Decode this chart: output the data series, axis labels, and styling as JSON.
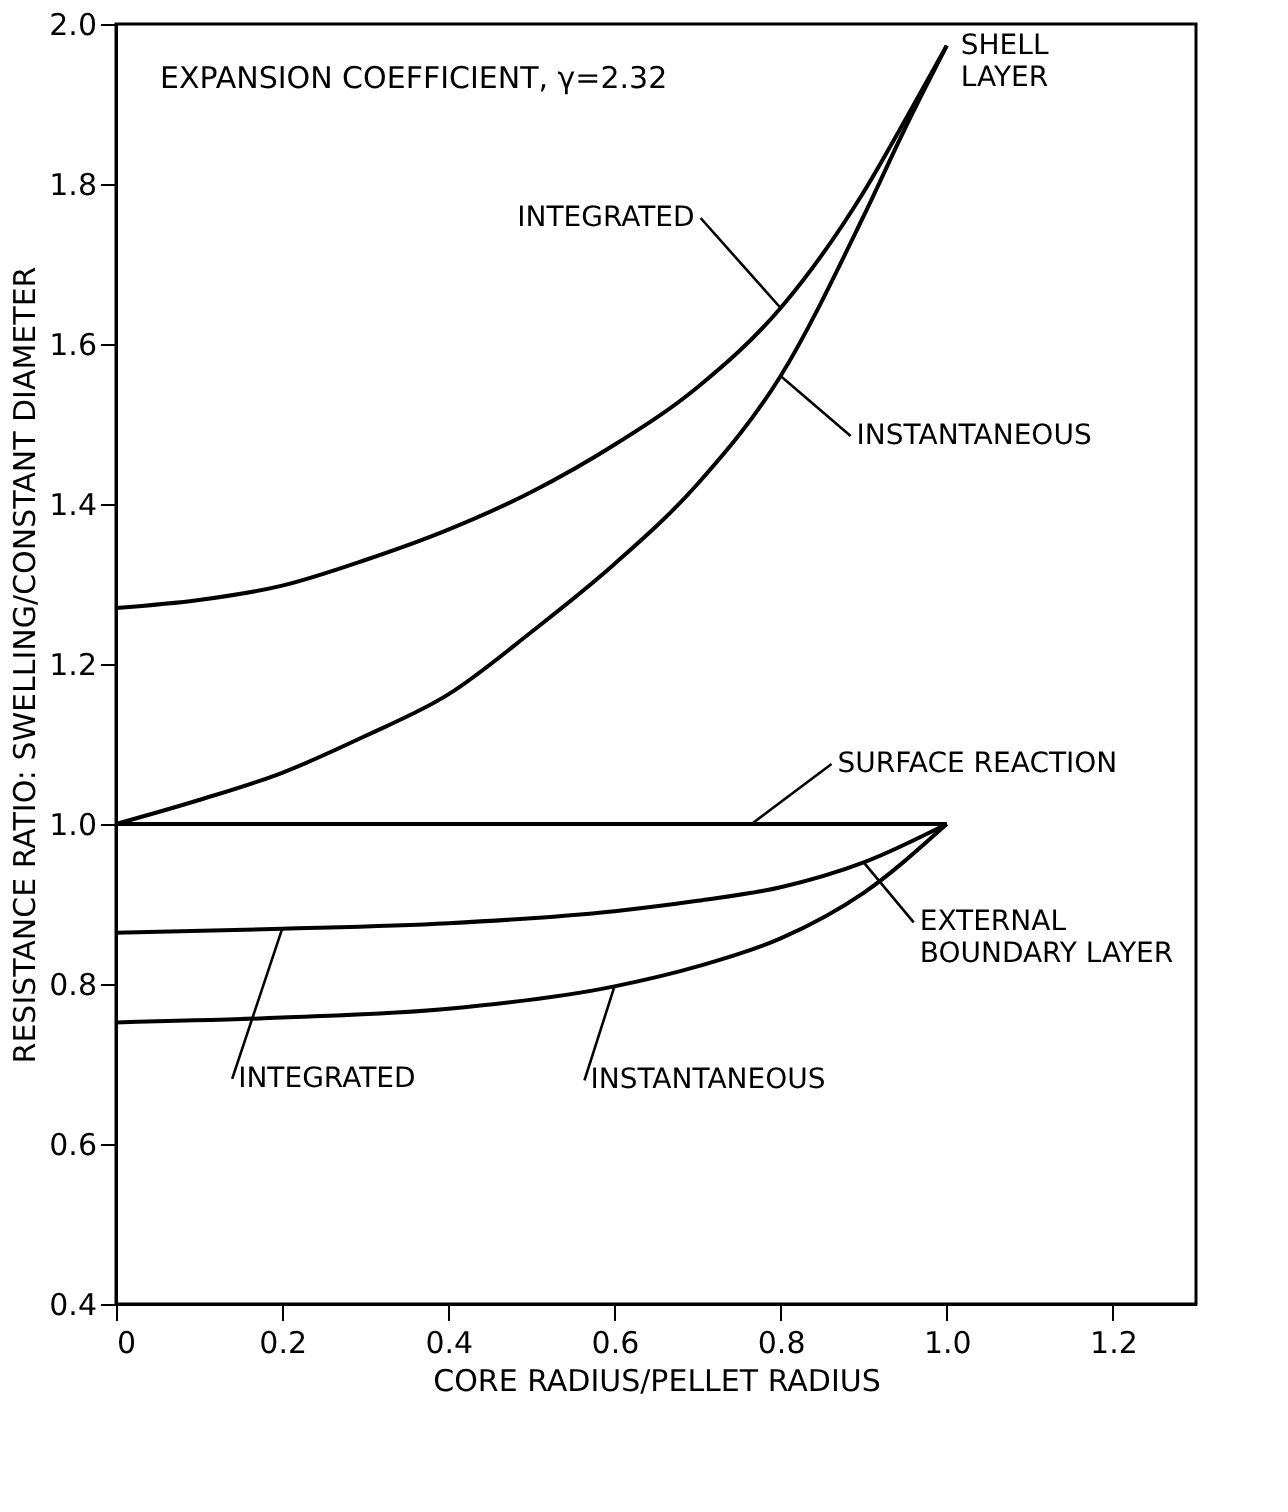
{
  "chart_data": {
    "type": "line",
    "xlabel": "CORE RADIUS/PELLET RADIUS",
    "ylabel": "RESISTANCE RATIO: SWELLING/CONSTANT DIAMETER",
    "xlim": [
      0,
      1.3
    ],
    "ylim": [
      0.4,
      2.0
    ],
    "xticks": [
      0,
      0.2,
      0.4,
      0.6,
      0.8,
      {
        "value": 1,
        "label": "1.0"
      },
      1.2
    ],
    "yticks": [
      0.4,
      0.6,
      0.8,
      {
        "value": 1,
        "label": "1.0"
      },
      1.2,
      1.4,
      1.6,
      1.8,
      {
        "value": 2,
        "label": "2.0"
      }
    ],
    "grid": false,
    "marker": "none",
    "line_style": "solid",
    "series": [
      {
        "color": "#000000",
        "x": [
          0,
          0.1,
          0.2,
          0.3,
          0.4,
          0.5,
          0.6,
          0.7,
          0.8,
          0.9,
          0.95,
          1.0
        ],
        "values": [
          1.27,
          1.28,
          1.298,
          1.33,
          1.368,
          1.415,
          1.474,
          1.546,
          1.645,
          1.79,
          1.88,
          1.973
        ]
      },
      {
        "color": "#000000",
        "x": [
          0,
          0.1,
          0.2,
          0.3,
          0.4,
          0.5,
          0.6,
          0.7,
          0.8,
          0.9,
          0.95,
          1.0
        ],
        "values": [
          1.0,
          1.03,
          1.064,
          1.11,
          1.162,
          1.24,
          1.325,
          1.425,
          1.56,
          1.76,
          1.87,
          1.973
        ]
      },
      {
        "color": "#000000",
        "x": [
          0,
          1.0
        ],
        "values": [
          1.0,
          1.0
        ]
      },
      {
        "color": "#000000",
        "x": [
          0,
          0.2,
          0.4,
          0.6,
          0.7,
          0.8,
          0.9,
          1.0
        ],
        "values": [
          0.864,
          0.869,
          0.876,
          0.891,
          0.904,
          0.921,
          0.952,
          1.0
        ]
      },
      {
        "color": "#000000",
        "x": [
          0,
          0.2,
          0.4,
          0.6,
          0.7,
          0.8,
          0.9,
          1.0
        ],
        "values": [
          0.752,
          0.758,
          0.769,
          0.797,
          0.822,
          0.857,
          0.914,
          1.0
        ]
      }
    ],
    "annotations": [
      "EXPANSION COEFFICIENT, γ=2.32",
      {
        "text": "SHELL\nLAYER",
        "x": 1.0,
        "y": 1.973
      },
      {
        "text": "INTEGRATED",
        "x": 0.8,
        "y": 1.645
      },
      {
        "text": "INSTANTANEOUS",
        "x": 0.8,
        "y": 1.56
      },
      {
        "text": "SURFACE REACTION",
        "x": 0.765,
        "y": 1.0
      },
      {
        "text": "EXTERNAL\nBOUNDARY LAYER",
        "x": 0.9,
        "y": 0.952
      },
      {
        "text": "INTEGRATED",
        "x": 0.2,
        "y": 0.869
      },
      {
        "text": "INSTANTANEOUS",
        "x": 0.6,
        "y": 0.797
      }
    ]
  }
}
